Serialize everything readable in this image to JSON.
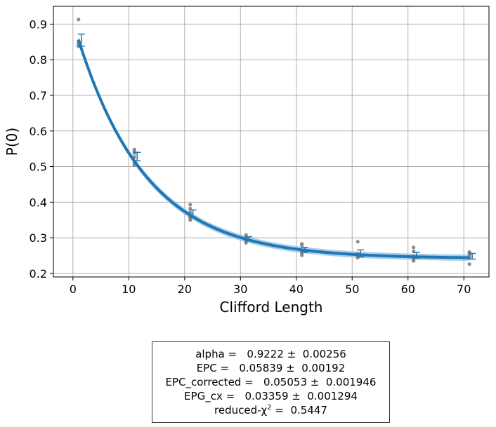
{
  "chart_data": {
    "type": "scatter",
    "xlabel": "Clifford Length",
    "ylabel": "P(0)",
    "xlim": [
      -3.5,
      74.5
    ],
    "ylim": [
      0.19,
      0.95
    ],
    "xticks": [
      0,
      10,
      20,
      30,
      40,
      50,
      60,
      70
    ],
    "yticks": [
      0.2,
      0.3,
      0.4,
      0.5,
      0.6,
      0.7,
      0.8,
      0.9
    ],
    "grid": true,
    "colors": {
      "fit": "#1f77b4",
      "band": "#9ec5e8",
      "points": "#808080",
      "errorbar": "#1f77b4"
    },
    "fit": {
      "model": "A*alpha^x + B",
      "A": 0.666,
      "alpha": 0.9222,
      "B": 0.242,
      "x_range": [
        1,
        71
      ]
    },
    "raw_points": [
      {
        "x": 1,
        "y": 0.913
      },
      {
        "x": 1,
        "y": 0.852
      },
      {
        "x": 1,
        "y": 0.846
      },
      {
        "x": 1,
        "y": 0.841
      },
      {
        "x": 1,
        "y": 0.838
      },
      {
        "x": 11,
        "y": 0.548
      },
      {
        "x": 11,
        "y": 0.543
      },
      {
        "x": 11,
        "y": 0.538
      },
      {
        "x": 11,
        "y": 0.527
      },
      {
        "x": 11,
        "y": 0.51
      },
      {
        "x": 11,
        "y": 0.504
      },
      {
        "x": 21,
        "y": 0.393
      },
      {
        "x": 21,
        "y": 0.382
      },
      {
        "x": 21,
        "y": 0.371
      },
      {
        "x": 21,
        "y": 0.36
      },
      {
        "x": 21,
        "y": 0.355
      },
      {
        "x": 21,
        "y": 0.35
      },
      {
        "x": 31,
        "y": 0.308
      },
      {
        "x": 31,
        "y": 0.302
      },
      {
        "x": 31,
        "y": 0.297
      },
      {
        "x": 31,
        "y": 0.291
      },
      {
        "x": 31,
        "y": 0.286
      },
      {
        "x": 41,
        "y": 0.283
      },
      {
        "x": 41,
        "y": 0.279
      },
      {
        "x": 41,
        "y": 0.262
      },
      {
        "x": 41,
        "y": 0.256
      },
      {
        "x": 41,
        "y": 0.251
      },
      {
        "x": 51,
        "y": 0.289
      },
      {
        "x": 51,
        "y": 0.255
      },
      {
        "x": 51,
        "y": 0.248
      },
      {
        "x": 51,
        "y": 0.244
      },
      {
        "x": 61,
        "y": 0.273
      },
      {
        "x": 61,
        "y": 0.262
      },
      {
        "x": 61,
        "y": 0.248
      },
      {
        "x": 61,
        "y": 0.24
      },
      {
        "x": 61,
        "y": 0.235
      },
      {
        "x": 71,
        "y": 0.26
      },
      {
        "x": 71,
        "y": 0.257
      },
      {
        "x": 71,
        "y": 0.252
      },
      {
        "x": 71,
        "y": 0.245
      },
      {
        "x": 71,
        "y": 0.226
      }
    ],
    "means": [
      {
        "x": 1.5,
        "y": 0.855,
        "err": 0.017
      },
      {
        "x": 11.5,
        "y": 0.528,
        "err": 0.012
      },
      {
        "x": 21.5,
        "y": 0.368,
        "err": 0.01
      },
      {
        "x": 31.5,
        "y": 0.297,
        "err": 0.006
      },
      {
        "x": 41.5,
        "y": 0.266,
        "err": 0.007
      },
      {
        "x": 51.5,
        "y": 0.256,
        "err": 0.01
      },
      {
        "x": 61.5,
        "y": 0.251,
        "err": 0.008
      },
      {
        "x": 71.5,
        "y": 0.248,
        "err": 0.008
      }
    ]
  },
  "fit_box": {
    "alpha": "alpha =   0.9222 ±  0.00256",
    "epc": "EPC =   0.05839 ±  0.00192",
    "epc_corrected": "EPC_corrected =   0.05053 ±  0.001946",
    "epg_cx": "EPG_cx =   0.03359 ±  0.001294",
    "chi_prefix": "reduced-χ",
    "chi_exp": "2",
    "chi_suffix": " =  0.5447"
  }
}
